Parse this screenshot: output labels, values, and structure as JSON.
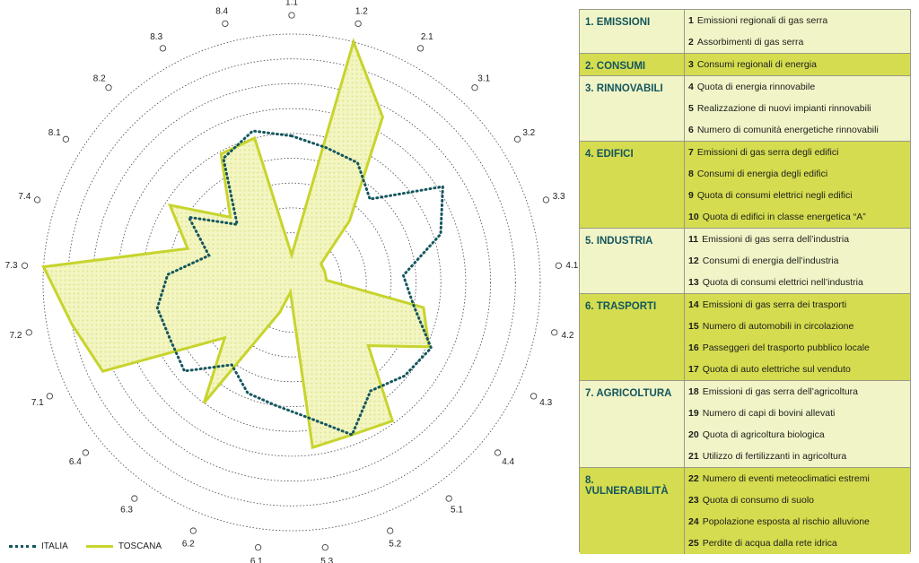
{
  "chart_data": {
    "type": "radar",
    "axes": [
      "1.1",
      "1.2",
      "2.1",
      "3.1",
      "3.2",
      "3.3",
      "4.1",
      "4.2",
      "4.3",
      "4.4",
      "5.1",
      "5.2",
      "5.3",
      "6.1",
      "6.2",
      "6.3",
      "6.4",
      "7.1",
      "7.2",
      "7.3",
      "7.4",
      "8.1",
      "8.2",
      "8.3",
      "8.4"
    ],
    "rings": 10,
    "series": [
      {
        "name": "ITALIA",
        "style": "dotted",
        "color": "#13565e",
        "values": [
          5.9,
          5.6,
          5.5,
          4.6,
          7.2,
          6.3,
          4.5,
          5.0,
          6.2,
          5.9,
          5.4,
          6.6,
          5.5,
          5.0,
          4.8,
          4.1,
          5.6,
          5.4,
          5.5,
          5.0,
          3.5,
          4.9,
          3.2,
          5.7,
          6.3
        ]
      },
      {
        "name": "TOSCANA",
        "style": "solid-fill",
        "color": "#c7d42d",
        "values": [
          1.1,
          10.0,
          7.6,
          3.4,
          1.4,
          1.4,
          1.4,
          5.4,
          6.1,
          4.0,
          6.9,
          6.6,
          6.7,
          0.4,
          1.3,
          6.0,
          3.5,
          8.4,
          9.0,
          10.0,
          4.4,
          5.8,
          3.6,
          5.9,
          6.0
        ]
      }
    ]
  },
  "legend": {
    "italia": "ITALIA",
    "toscana": "TOSCANA"
  },
  "colors": {
    "italia": "#13565e",
    "toscana": "#c7d42d",
    "light_row": "#f1f4c7",
    "dark_row": "#d5dc4f",
    "group_text": "#13565e"
  },
  "groups": [
    {
      "name": "1. EMISSIONI",
      "shade": "light",
      "items": [
        {
          "n": "1",
          "text": "Emissioni regionali di gas serra"
        },
        {
          "n": "2",
          "text": "Assorbimenti di gas serra"
        }
      ]
    },
    {
      "name": "2. CONSUMI",
      "shade": "dark",
      "items": [
        {
          "n": "3",
          "text": "Consumi regionali di energia"
        }
      ]
    },
    {
      "name": "3. RINNOVABILI",
      "shade": "light",
      "items": [
        {
          "n": "4",
          "text": "Quota di energia rinnovabile"
        },
        {
          "n": "5",
          "text": "Realizzazione di nuovi impianti rinnovabili"
        },
        {
          "n": "6",
          "text": "Numero di comunità energetiche rinnovabili"
        }
      ]
    },
    {
      "name": "4. EDIFICI",
      "shade": "dark",
      "items": [
        {
          "n": "7",
          "text": "Emissioni di gas serra degli edifici"
        },
        {
          "n": "8",
          "text": "Consumi di energia degli edifici"
        },
        {
          "n": "9",
          "text": "Quota di consumi elettrici negli edifici"
        },
        {
          "n": "10",
          "text": "Quota di edifici in classe energetica “A”"
        }
      ]
    },
    {
      "name": "5. INDUSTRIA",
      "shade": "light",
      "items": [
        {
          "n": "11",
          "text": "Emissioni di gas serra dell’industria"
        },
        {
          "n": "12",
          "text": "Consumi di energia dell’industria"
        },
        {
          "n": "13",
          "text": "Quota di consumi elettrici nell’industria"
        }
      ]
    },
    {
      "name": "6. TRASPORTI",
      "shade": "dark",
      "items": [
        {
          "n": "14",
          "text": "Emissioni di gas serra dei trasporti"
        },
        {
          "n": "15",
          "text": "Numero di automobili in circolazione"
        },
        {
          "n": "16",
          "text": "Passeggeri del trasporto pubblico locale"
        },
        {
          "n": "17",
          "text": "Quota di auto elettriche sul venduto"
        }
      ]
    },
    {
      "name": "7. AGRICOLTURA",
      "shade": "light",
      "items": [
        {
          "n": "18",
          "text": "Emissioni di gas serra dell’agricoltura"
        },
        {
          "n": "19",
          "text": "Numero di capi di bovini allevati"
        },
        {
          "n": "20",
          "text": "Quota di agricoltura biologica"
        },
        {
          "n": "21",
          "text": "Utilizzo di fertilizzanti in agricoltura"
        }
      ]
    },
    {
      "name": "8. VULNERABILITÀ",
      "shade": "dark",
      "items": [
        {
          "n": "22",
          "text": "Numero di eventi meteoclimatici estremi"
        },
        {
          "n": "23",
          "text": "Quota di consumo di suolo"
        },
        {
          "n": "24",
          "text": "Popolazione esposta al rischio alluvione"
        },
        {
          "n": "25",
          "text": "Perdite di acqua dalla rete idrica"
        }
      ]
    }
  ]
}
